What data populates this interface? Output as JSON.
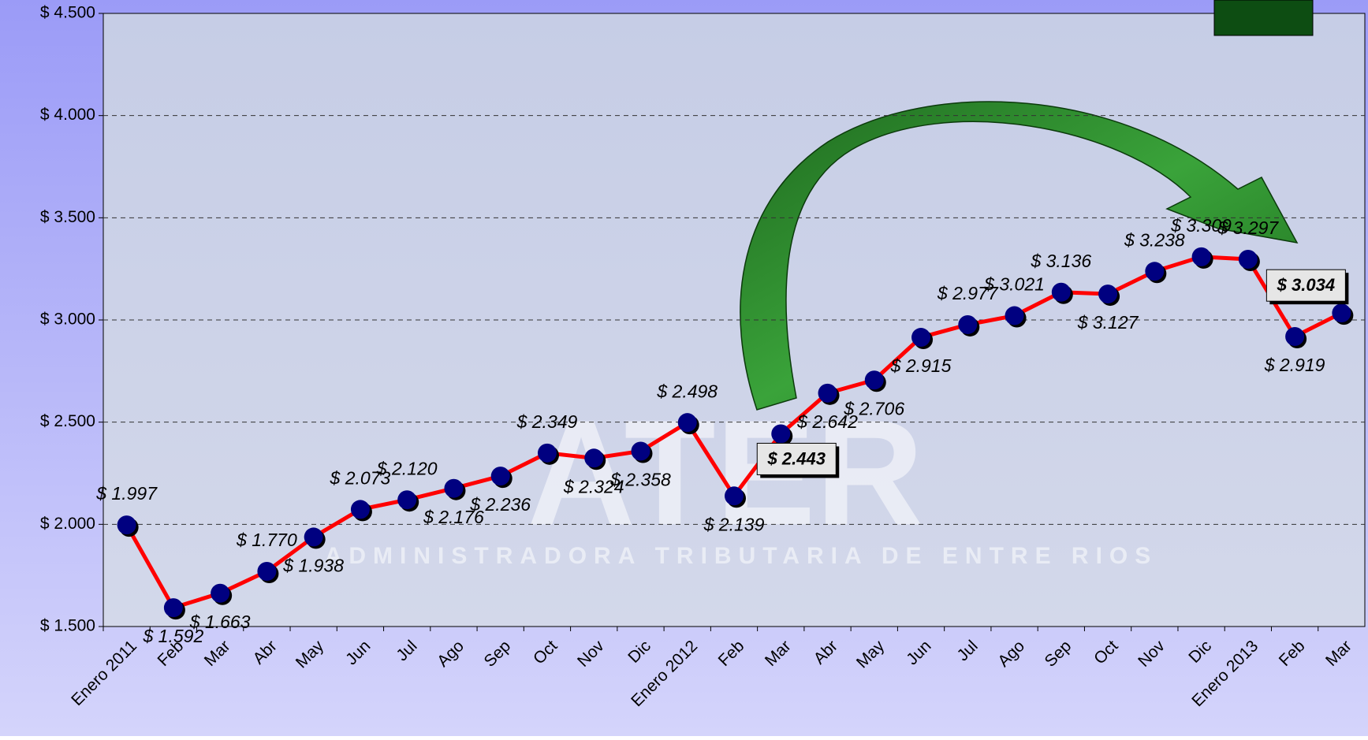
{
  "chart_data": {
    "type": "line",
    "watermark": "ATER",
    "watermark_subtitle": "ADMINISTRADORA TRIBUTARIA DE ENTRE RIOS",
    "categories": [
      "Enero 2011",
      "Feb",
      "Mar",
      "Abr",
      "May",
      "Jun",
      "Jul",
      "Ago",
      "Sep",
      "Oct",
      "Nov",
      "Dic",
      "Enero 2012",
      "Feb",
      "Mar",
      "Abr",
      "May",
      "Jun",
      "Jul",
      "Ago",
      "Sep",
      "Oct",
      "Nov",
      "Dic",
      "Enero 2013",
      "Feb",
      "Mar"
    ],
    "series": [
      {
        "color": "#ff0000",
        "marker_color": "#000080",
        "values": [
          1997,
          1592,
          1663,
          1770,
          1938,
          2073,
          2120,
          2176,
          2236,
          2349,
          2324,
          2358,
          2498,
          2139,
          2443,
          2642,
          2706,
          2915,
          2977,
          3021,
          3136,
          3127,
          3238,
          3309,
          3297,
          2919,
          3034
        ],
        "value_labels": [
          "$ 1.997",
          "$ 1.592",
          "$ 1.663",
          "$ 1.770",
          "$ 1.938",
          "$ 2.073",
          "$ 2.120",
          "$ 2.176",
          "$ 2.236",
          "$ 2.349",
          "$ 2.324",
          "$ 2.358",
          "$ 2.498",
          "$ 2.139",
          "$ 2.443",
          "$ 2.642",
          "$ 2.706",
          "$ 2.915",
          "$ 2.977",
          "$ 3.021",
          "$ 3.136",
          "$ 3.127",
          "$ 3.238",
          "$ 3.309",
          "$ 3.297",
          "$ 2.919",
          "$ 3.034"
        ]
      }
    ],
    "ylim": [
      1500,
      4500
    ],
    "yticks": [
      {
        "value": 1500,
        "label": "$ 1.500"
      },
      {
        "value": 2000,
        "label": "$ 2.000"
      },
      {
        "value": 2500,
        "label": "$ 2.500"
      },
      {
        "value": 3000,
        "label": "$ 3.000"
      },
      {
        "value": 3500,
        "label": "$ 3.500"
      },
      {
        "value": 4000,
        "label": "$ 4.000"
      },
      {
        "value": 4500,
        "label": "$ 4.500"
      }
    ],
    "grid": true
  }
}
